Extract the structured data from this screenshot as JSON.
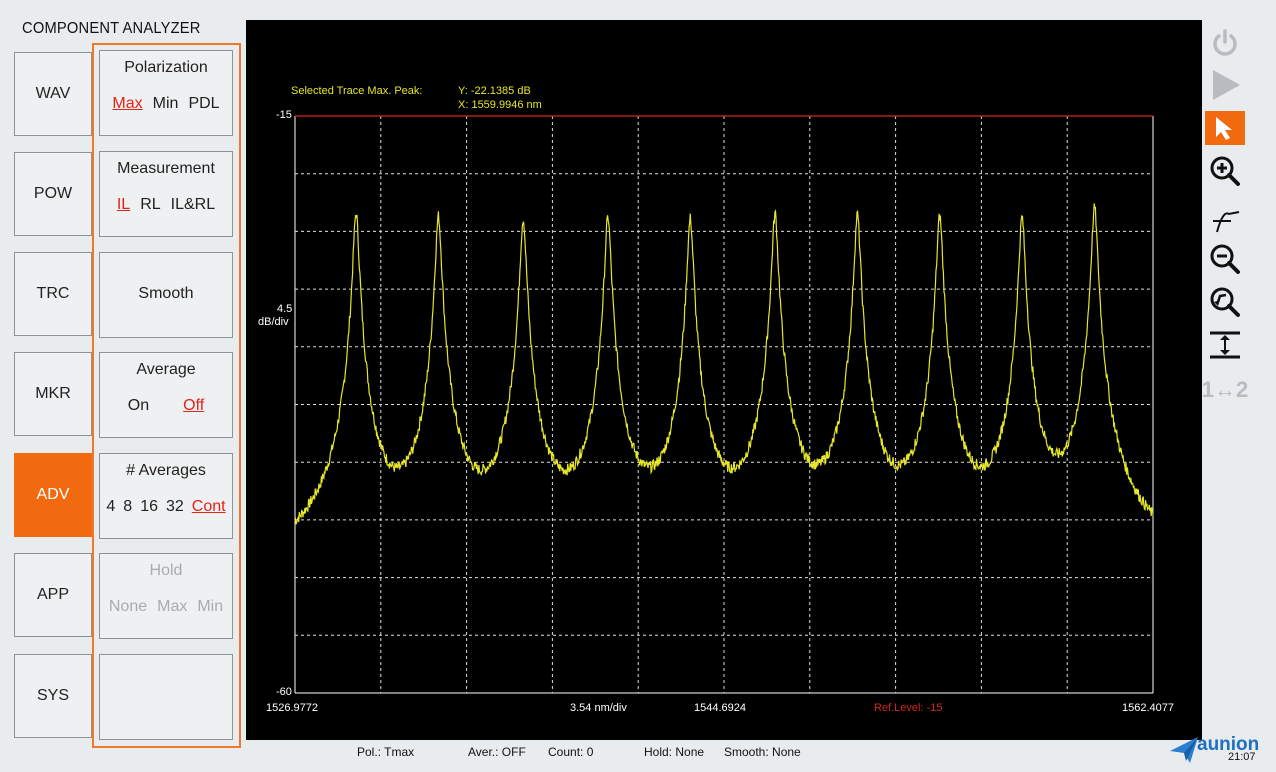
{
  "app": {
    "title": "COMPONENT ANALYZER"
  },
  "nav": {
    "items": [
      {
        "label": "WAV",
        "active": false
      },
      {
        "label": "POW",
        "active": false
      },
      {
        "label": "TRC",
        "active": false
      },
      {
        "label": "MKR",
        "active": false
      },
      {
        "label": "ADV",
        "active": true
      },
      {
        "label": "APP",
        "active": false
      },
      {
        "label": "SYS",
        "active": false
      }
    ]
  },
  "settings": {
    "polarization": {
      "title": "Polarization",
      "options": [
        "Max",
        "Min",
        "PDL"
      ],
      "selected": "Max"
    },
    "measurement": {
      "title": "Measurement",
      "options": [
        "IL",
        "RL",
        "IL&RL"
      ],
      "selected": "IL"
    },
    "smooth": {
      "title": "Smooth"
    },
    "average": {
      "title": "Average",
      "options": [
        "On",
        "Off"
      ],
      "selected": "Off"
    },
    "num_averages": {
      "title": "# Averages",
      "options": [
        "4",
        "8",
        "16",
        "32",
        "Cont"
      ],
      "selected": "Cont"
    },
    "hold": {
      "title": "Hold",
      "options": [
        "None",
        "Max",
        "Min"
      ],
      "enabled": false
    },
    "empty": {
      "title": ""
    }
  },
  "plot": {
    "peak_label": "Selected Trace Max. Peak:",
    "peak_y": "Y: -22.1385 dB",
    "peak_x": "X: 1559.9946 nm",
    "y_top": "-15",
    "y_bottom": "-60",
    "y_div_value": "4.5",
    "y_div_unit": "dB/div",
    "x_start": "1526.9772",
    "x_div": "3.54 nm/div",
    "x_center": "1544.6924",
    "ref_level": "Ref.Level: -15",
    "x_end": "1562.4077"
  },
  "chart_data": {
    "type": "line",
    "xlim": [
      1526.9772,
      1562.4077
    ],
    "ylim": [
      -60,
      -15
    ],
    "xlabel": "",
    "ylabel": "",
    "grid": true,
    "trace_color": "#e6e62a",
    "ref_line_color": "#d0281c",
    "peaks_nm": [
      1529.5,
      1532.9,
      1536.4,
      1539.9,
      1543.3,
      1546.8,
      1550.2,
      1553.6,
      1557.0,
      1559.9946
    ],
    "peak_values_db": [
      -22.6,
      -22.8,
      -23.0,
      -22.9,
      -23.0,
      -22.6,
      -22.7,
      -22.8,
      -22.9,
      -22.1385
    ],
    "floor_db": -51.0,
    "series": [
      {
        "values": "Fabry-Perot comb trace, 10 sharp peaks from about -22 to -23 dB over a floor near -51 dB"
      }
    ]
  },
  "toolbar": {
    "tools": [
      {
        "icon": "power-icon",
        "active": false
      },
      {
        "icon": "run-icon",
        "active": false
      },
      {
        "icon": "pointer-icon",
        "active": true
      },
      {
        "icon": "zoom-in-icon",
        "active": false
      },
      {
        "icon": "peak-marker-icon",
        "active": false
      },
      {
        "icon": "zoom-out-icon",
        "active": false
      },
      {
        "icon": "zoom-reset-icon",
        "active": false
      },
      {
        "icon": "auto-scale-icon",
        "active": false
      },
      {
        "icon": "trace-swap-icon",
        "active": false
      }
    ],
    "trace_swap_label": "1↔2"
  },
  "status": {
    "pol": "Pol.: Tmax",
    "aver": "Aver.: OFF",
    "count": "Count: 0",
    "hold": "Hold: None",
    "smooth": "Smooth: None",
    "brand": "aunion",
    "time": "21:07"
  }
}
